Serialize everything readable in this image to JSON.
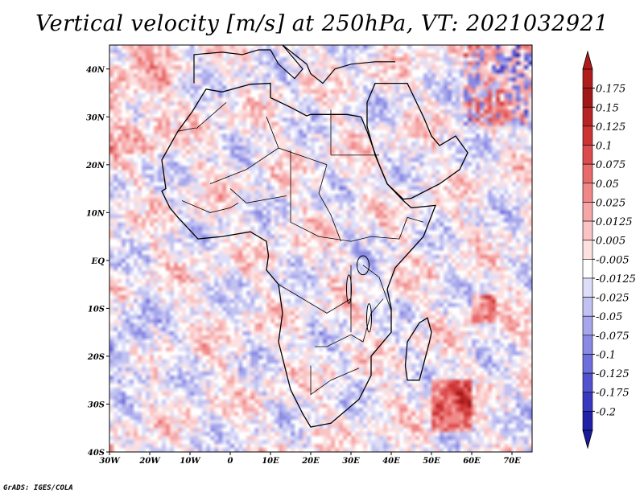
{
  "title": "Vertical velocity [m/s] at 250hPa, VT: 2021032921",
  "credit": "GrADS: IGES/COLA",
  "map": {
    "variable": "Vertical velocity",
    "units": "m/s",
    "level": "250hPa",
    "valid_time": "2021032921",
    "lon_range": [
      -30,
      75
    ],
    "lat_range": [
      -40,
      45
    ],
    "lat_ticks": [
      {
        "value": 40,
        "label": "40N"
      },
      {
        "value": 30,
        "label": "30N"
      },
      {
        "value": 20,
        "label": "20N"
      },
      {
        "value": 10,
        "label": "10N"
      },
      {
        "value": 0,
        "label": "EQ"
      },
      {
        "value": -10,
        "label": "10S"
      },
      {
        "value": -20,
        "label": "20S"
      },
      {
        "value": -30,
        "label": "30S"
      },
      {
        "value": -40,
        "label": "40S"
      }
    ],
    "lon_ticks": [
      {
        "value": -30,
        "label": "30W"
      },
      {
        "value": -20,
        "label": "20W"
      },
      {
        "value": -10,
        "label": "10W"
      },
      {
        "value": 0,
        "label": "0"
      },
      {
        "value": 10,
        "label": "10E"
      },
      {
        "value": 20,
        "label": "20E"
      },
      {
        "value": 30,
        "label": "30E"
      },
      {
        "value": 40,
        "label": "40E"
      },
      {
        "value": 50,
        "label": "50E"
      },
      {
        "value": 60,
        "label": "60E"
      },
      {
        "value": 70,
        "label": "70E"
      }
    ]
  },
  "colorbar": {
    "levels": [
      {
        "label": "0.175",
        "color": "#a01818"
      },
      {
        "label": "0.15",
        "color": "#b82424"
      },
      {
        "label": "0.125",
        "color": "#cc3434"
      },
      {
        "label": "0.1",
        "color": "#dc4c4c"
      },
      {
        "label": "0.075",
        "color": "#e86a6a"
      },
      {
        "label": "0.05",
        "color": "#f08888"
      },
      {
        "label": "0.025",
        "color": "#f6a6a6"
      },
      {
        "label": "0.0125",
        "color": "#fac4c4"
      },
      {
        "label": "0.005",
        "color": "#fde0e0"
      },
      {
        "label": "-0.005",
        "color": "#ffffff"
      },
      {
        "label": "-0.0125",
        "color": "#dedef8"
      },
      {
        "label": "-0.025",
        "color": "#c2c2f2"
      },
      {
        "label": "-0.05",
        "color": "#a6a6ec"
      },
      {
        "label": "-0.075",
        "color": "#8a8ae4"
      },
      {
        "label": "-0.1",
        "color": "#6e6edc"
      },
      {
        "label": "-0.125",
        "color": "#5252d0"
      },
      {
        "label": "-0.175",
        "color": "#3838c0"
      },
      {
        "label": "-0.2",
        "color": "#2020a8"
      }
    ],
    "top_color": "#b01c1c",
    "bottom_color": "#1a1a9c"
  },
  "colors": {
    "background": "#ffffff",
    "frame": "#000000",
    "neutral": "#ffffff"
  }
}
